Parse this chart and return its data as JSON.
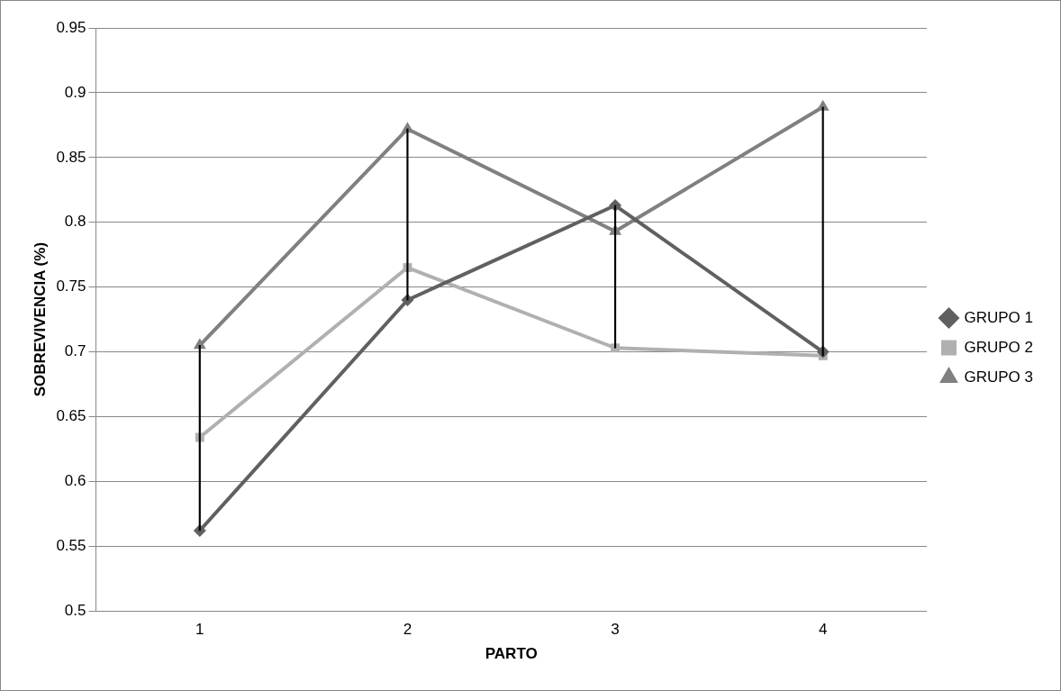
{
  "chart_data": {
    "type": "line",
    "xlabel": "PARTO",
    "ylabel": "SOBREVIVENCIA (%)",
    "categories": [
      "1",
      "2",
      "3",
      "4"
    ],
    "series": [
      {
        "name": "GRUPO 1",
        "color": "#606060",
        "marker": "diamond",
        "values": [
          0.562,
          0.74,
          0.813,
          0.7
        ]
      },
      {
        "name": "GRUPO 2",
        "color": "#b0b0b0",
        "marker": "square",
        "values": [
          0.634,
          0.765,
          0.703,
          0.697
        ]
      },
      {
        "name": "GRUPO 3",
        "color": "#808080",
        "marker": "triangle",
        "values": [
          0.705,
          0.872,
          0.793,
          0.889
        ]
      },
      {
        "type": "bar",
        "color": "#000000",
        "base": [
          0.562,
          0.74,
          0.703,
          0.697
        ],
        "values": [
          0.143,
          0.132,
          0.11,
          0.192
        ]
      }
    ],
    "ylim": [
      0.5,
      0.95
    ],
    "yticks": [
      0.5,
      0.55,
      0.6,
      0.65,
      0.7,
      0.75,
      0.8,
      0.85,
      0.9,
      0.95
    ],
    "grid": "y",
    "legend": "right"
  }
}
